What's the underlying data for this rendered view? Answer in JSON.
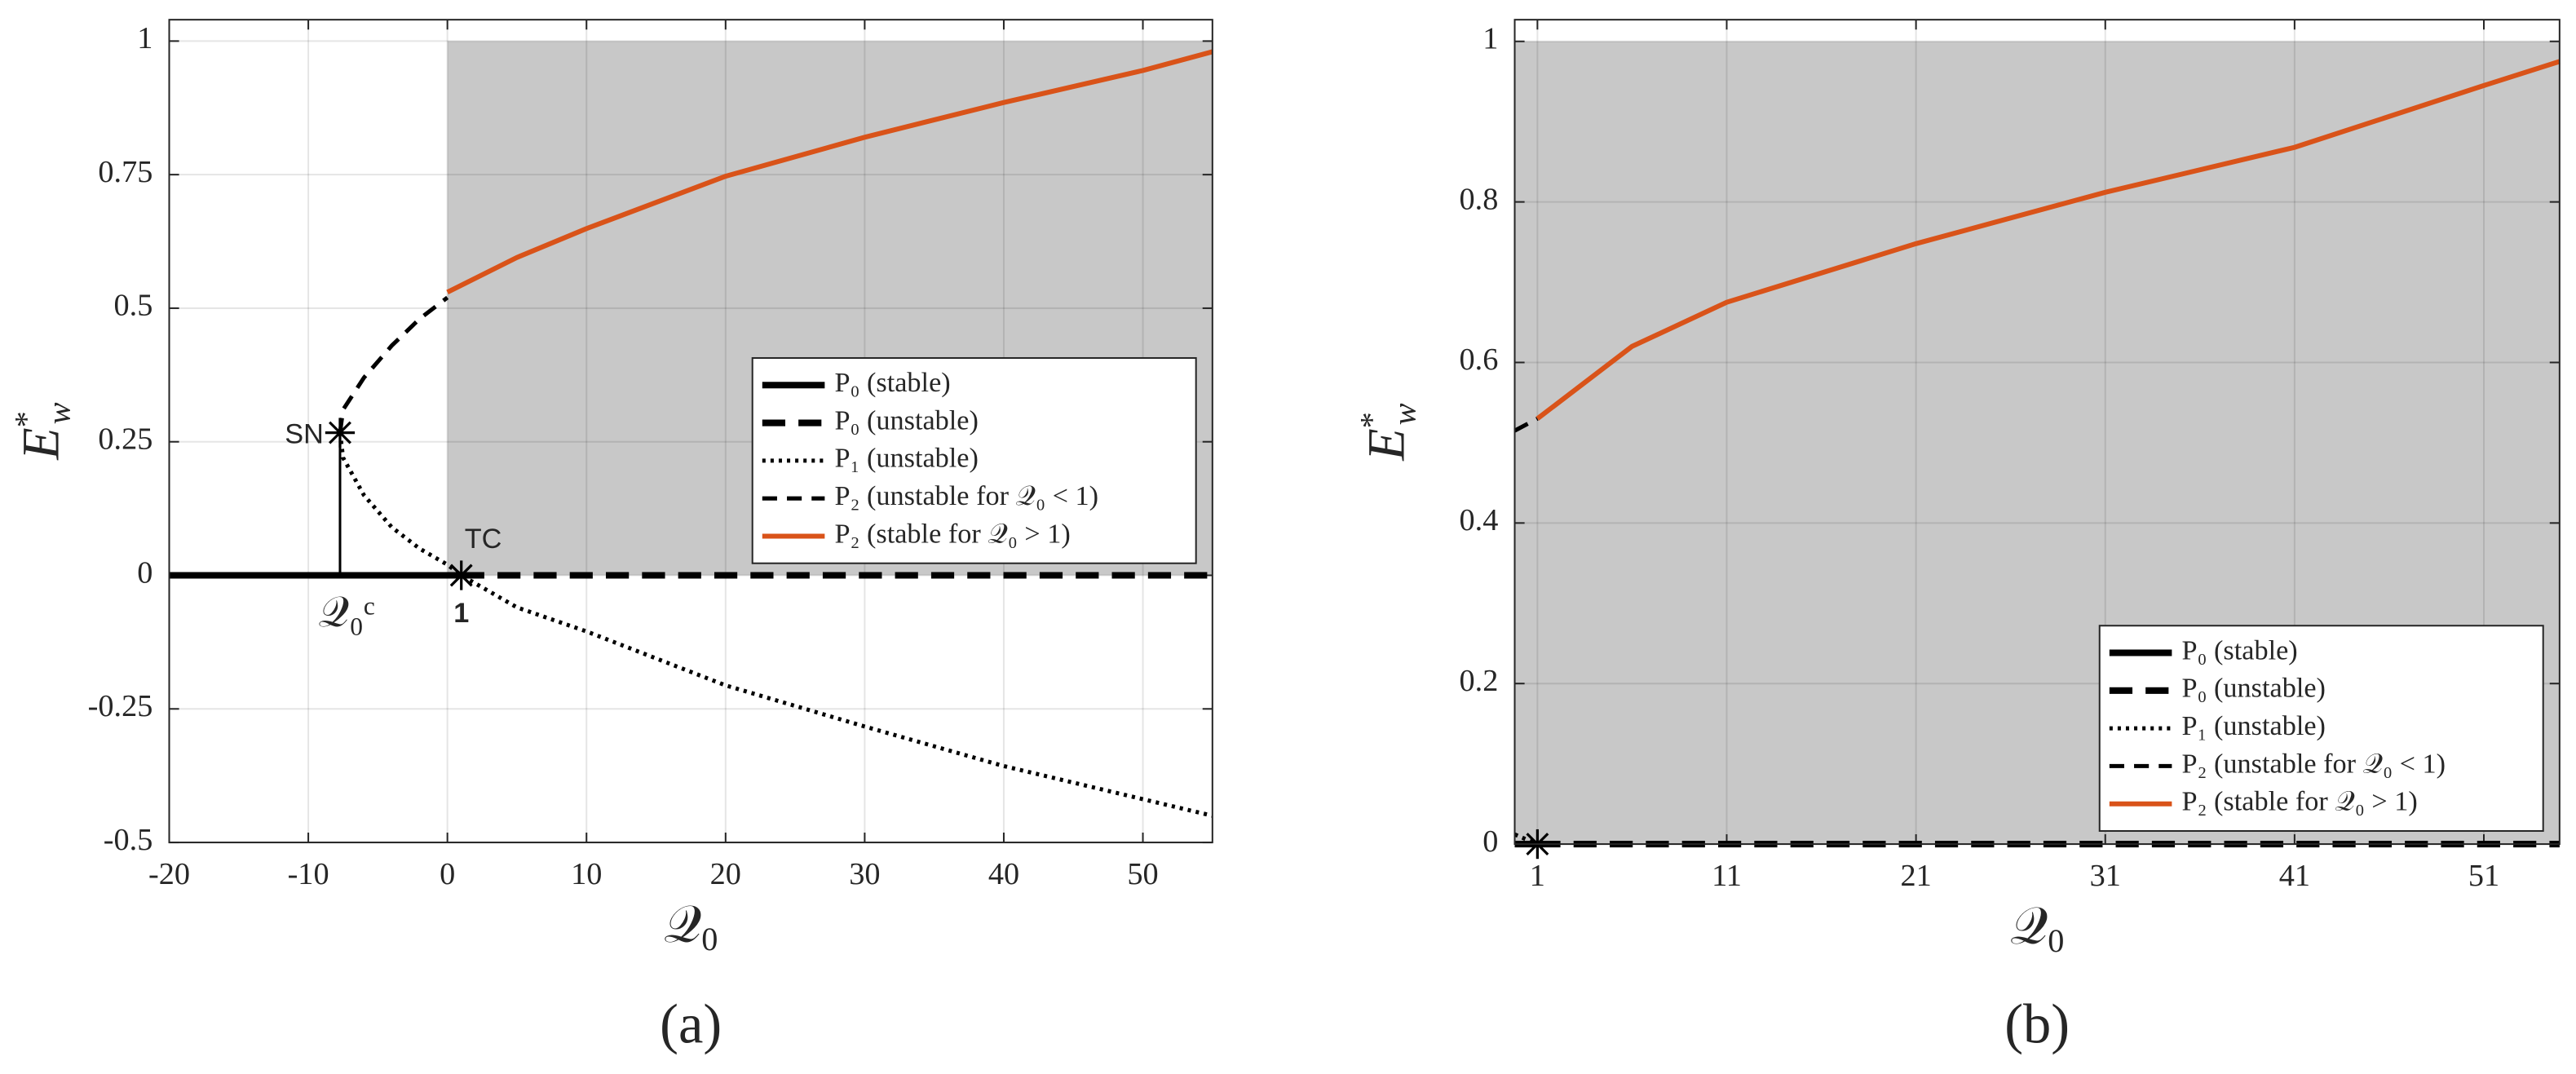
{
  "chart_data": [
    {
      "type": "line",
      "caption": "(a)",
      "x_label": {
        "base": "𝒬",
        "sub": "0"
      },
      "y_label": {
        "base": "E",
        "sup": "*",
        "sub": "w"
      },
      "xlim": [
        -20,
        55
      ],
      "ylim": [
        -0.5,
        1.04
      ],
      "xticks": [
        -20,
        -10,
        0,
        10,
        20,
        30,
        40,
        50
      ],
      "yticks": [
        -0.5,
        -0.25,
        0,
        0.25,
        0.5,
        0.75,
        1
      ],
      "grid": true,
      "legend": "east",
      "shade": {
        "x": [
          0,
          55
        ],
        "y": [
          0,
          1
        ],
        "color": "#c8c8c8"
      },
      "series": [
        {
          "name": "P₀ (stable)",
          "color": "#000000",
          "style": "solid",
          "x": [
            -20,
            1
          ],
          "values": [
            0,
            0
          ]
        },
        {
          "name": "P₀ (unstable)",
          "color": "#000000",
          "style": "dashed",
          "x": [
            1,
            55
          ],
          "values": [
            0,
            0
          ]
        },
        {
          "name": "P₁ (unstable)",
          "color": "#000000",
          "style": "dotted",
          "x": [
            -7.72,
            -7.5,
            -6,
            -4,
            -2,
            0,
            1,
            5,
            10,
            20,
            30,
            40,
            55
          ],
          "values": [
            0.267,
            0.22,
            0.15,
            0.09,
            0.05,
            0.02,
            0,
            -0.06,
            -0.105,
            -0.206,
            -0.283,
            -0.357,
            -0.45
          ]
        },
        {
          "name": "P₂ (unstable for 𝒬₀ < 1)",
          "color": "#000000",
          "style": "thin-dashed",
          "x": [
            -7.72,
            -7.5,
            -6,
            -4,
            -2,
            0
          ],
          "values": [
            0.267,
            0.31,
            0.37,
            0.43,
            0.48,
            0.52
          ]
        },
        {
          "name": "P₂ (stable for 𝒬₀ > 1)",
          "color": "#d95319",
          "style": "solid-thin",
          "x": [
            0,
            5,
            10,
            20,
            30,
            40,
            50,
            55
          ],
          "values": [
            0.53,
            0.595,
            0.649,
            0.747,
            0.82,
            0.885,
            0.945,
            0.98
          ]
        }
      ],
      "points": [
        {
          "name": "SN",
          "x": -7.72,
          "y": 0.267,
          "x_label": "𝒬₀ᶜ",
          "drop_line": true
        },
        {
          "name": "TC",
          "x": 1,
          "y": 0,
          "x_label": "1",
          "drop_line": false
        }
      ]
    },
    {
      "type": "line",
      "caption": "(b)",
      "x_label": {
        "base": "𝒬",
        "sub": "0"
      },
      "y_label": {
        "base": "E",
        "sup": "*",
        "sub": "w"
      },
      "xlim": [
        -0.2,
        55
      ],
      "ylim": [
        0,
        1.027
      ],
      "xticks": [
        1,
        11,
        21,
        31,
        41,
        51
      ],
      "yticks": [
        0,
        0.2,
        0.4,
        0.6,
        0.8,
        1
      ],
      "grid": true,
      "legend": "southeast",
      "shade": {
        "x": [
          -0.2,
          55
        ],
        "y": [
          0,
          1
        ],
        "color": "#c8c8c8"
      },
      "series": [
        {
          "name": "P₀ (stable)",
          "color": "#000000",
          "style": "solid",
          "x": [
            -0.2,
            1
          ],
          "values": [
            0,
            0
          ]
        },
        {
          "name": "P₀ (unstable)",
          "color": "#000000",
          "style": "dashed",
          "x": [
            1,
            55
          ],
          "values": [
            0,
            0
          ]
        },
        {
          "name": "P₁ (unstable)",
          "color": "#000000",
          "style": "dotted",
          "x": [
            -0.2,
            1
          ],
          "values": [
            0.012,
            0
          ]
        },
        {
          "name": "P₂ (unstable for 𝒬₀ < 1)",
          "color": "#000000",
          "style": "thin-dashed",
          "x": [
            -0.2,
            1
          ],
          "values": [
            0.515,
            0.53
          ]
        },
        {
          "name": "P₂ (stable for 𝒬₀ > 1)",
          "color": "#d95319",
          "style": "solid-thin",
          "x": [
            1,
            6,
            11,
            21,
            31,
            41,
            51,
            55
          ],
          "values": [
            0.53,
            0.62,
            0.675,
            0.748,
            0.812,
            0.868,
            0.945,
            0.975
          ]
        }
      ],
      "points": [
        {
          "x": 1,
          "y": 0
        }
      ]
    }
  ]
}
